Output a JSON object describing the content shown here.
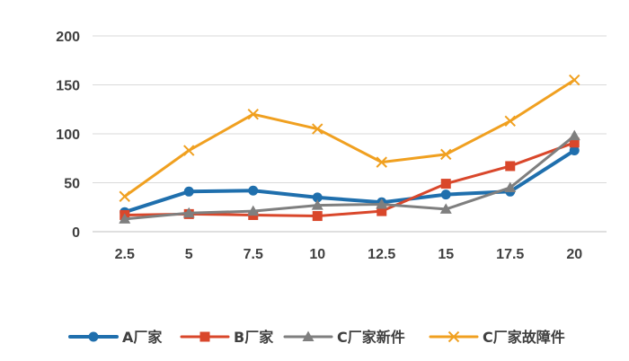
{
  "chart_data": {
    "type": "line",
    "x": [
      2.5,
      5,
      7.5,
      10,
      12.5,
      15,
      17.5,
      20
    ],
    "x_tick_labels": [
      "2.5",
      "5",
      "7.5",
      "10",
      "12.5",
      "15",
      "17.5",
      "20"
    ],
    "ylim": [
      0,
      200
    ],
    "y_ticks": [
      0,
      50,
      100,
      150,
      200
    ],
    "y_tick_labels": [
      "0",
      "50",
      "100",
      "150",
      "200"
    ],
    "grid": "horizontal",
    "legend_position": "bottom",
    "series": [
      {
        "name": "A厂家",
        "color": "#1f6fad",
        "marker": "circle",
        "values": [
          20,
          41,
          42,
          35,
          30,
          38,
          41,
          83
        ]
      },
      {
        "name": "B厂家",
        "color": "#d9472b",
        "marker": "square",
        "values": [
          17,
          18,
          17,
          16,
          21,
          49,
          67,
          91
        ]
      },
      {
        "name": "C厂家新件",
        "color": "#7f7f7f",
        "marker": "triangle",
        "values": [
          13,
          19,
          21,
          27,
          28,
          23,
          45,
          98
        ]
      },
      {
        "name": "C厂家故障件",
        "color": "#f0a020",
        "marker": "x",
        "values": [
          36,
          83,
          120,
          105,
          71,
          79,
          113,
          155
        ]
      }
    ]
  }
}
